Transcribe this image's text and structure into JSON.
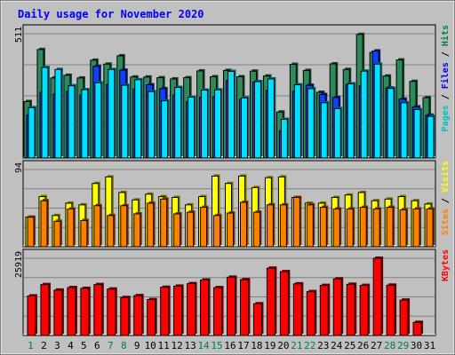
{
  "chart_data": [
    {
      "type": "bar",
      "title": "Daily usage for November 2020",
      "categories": [
        "1",
        "2",
        "3",
        "4",
        "5",
        "6",
        "7",
        "8",
        "9",
        "10",
        "11",
        "12",
        "13",
        "14",
        "15",
        "16",
        "17",
        "18",
        "19",
        "20",
        "21",
        "22",
        "23",
        "24",
        "25",
        "26",
        "27",
        "28",
        "29",
        "30",
        "31"
      ],
      "weekend_days": [
        "1",
        "7",
        "8",
        "14",
        "15",
        "21",
        "22",
        "28",
        "29"
      ],
      "ymax_label": "511",
      "ylim": [
        0,
        511
      ],
      "legend": [
        {
          "label": "Pages",
          "color": "#00c0c0"
        },
        {
          "label": "Files",
          "color": "#0000ff"
        },
        {
          "label": "Hits",
          "color": "#008040"
        }
      ],
      "series": [
        {
          "name": "Hits",
          "color": "#2e8a5a",
          "values": [
            232,
            446,
            329,
            340,
            329,
            402,
            386,
            420,
            333,
            333,
            330,
            325,
            330,
            358,
            334,
            360,
            334,
            357,
            337,
            189,
            385,
            360,
            270,
            387,
            364,
            508,
            434,
            337,
            403,
            315,
            248
          ]
        },
        {
          "name": "Files",
          "color": "#1040ff",
          "values": [
            176,
            270,
            263,
            274,
            259,
            377,
            302,
            361,
            284,
            301,
            285,
            259,
            230,
            250,
            252,
            318,
            241,
            312,
            278,
            112,
            274,
            299,
            261,
            249,
            302,
            297,
            440,
            288,
            242,
            210,
            176
          ]
        },
        {
          "name": "Pages",
          "color": "#00e0ff",
          "values": [
            207,
            372,
            364,
            297,
            281,
            309,
            364,
            299,
            322,
            273,
            235,
            290,
            250,
            279,
            280,
            356,
            247,
            314,
            325,
            159,
            301,
            285,
            227,
            203,
            305,
            357,
            386,
            286,
            227,
            199,
            171
          ]
        }
      ]
    },
    {
      "type": "bar",
      "categories": [
        "1",
        "2",
        "3",
        "4",
        "5",
        "6",
        "7",
        "8",
        "9",
        "10",
        "11",
        "12",
        "13",
        "14",
        "15",
        "16",
        "17",
        "18",
        "19",
        "20",
        "21",
        "22",
        "23",
        "24",
        "25",
        "26",
        "27",
        "28",
        "29",
        "30",
        "31"
      ],
      "ymax_label": "94",
      "ylim": [
        0,
        94
      ],
      "legend": [
        {
          "label": "Sites",
          "color": "#ff8000"
        },
        {
          "label": "Visits",
          "color": "#ffff00"
        }
      ],
      "series": [
        {
          "name": "Visits",
          "color": "#ffff00",
          "values": [
            36,
            61,
            38,
            53,
            51,
            77,
            85,
            66,
            57,
            64,
            61,
            60,
            51,
            61,
            86,
            77,
            86,
            72,
            84,
            85,
            60,
            53,
            53,
            60,
            63,
            66,
            56,
            58,
            61,
            56,
            52
          ]
        },
        {
          "name": "Sites",
          "color": "#ff8000",
          "values": [
            36,
            56,
            31,
            46,
            32,
            50,
            38,
            50,
            40,
            53,
            58,
            40,
            42,
            48,
            38,
            41,
            54,
            42,
            51,
            51,
            60,
            51,
            48,
            46,
            46,
            48,
            46,
            48,
            45,
            46,
            46
          ]
        }
      ]
    },
    {
      "type": "bar",
      "categories": [
        "1",
        "2",
        "3",
        "4",
        "5",
        "6",
        "7",
        "8",
        "9",
        "10",
        "11",
        "12",
        "13",
        "14",
        "15",
        "16",
        "17",
        "18",
        "19",
        "20",
        "21",
        "22",
        "23",
        "24",
        "25",
        "26",
        "27",
        "28",
        "29",
        "30",
        "31"
      ],
      "ymax_label": "25919",
      "ylim": [
        0,
        25919
      ],
      "legend": [
        {
          "label": "KBytes",
          "color": "#ff0000"
        }
      ],
      "series": [
        {
          "name": "KBytes",
          "color": "#ff0000",
          "values": [
            13280,
            17090,
            15240,
            16080,
            15810,
            17090,
            15580,
            12750,
            13380,
            12060,
            16180,
            16560,
            17400,
            18620,
            16070,
            19570,
            18740,
            10650,
            22590,
            21430,
            17330,
            14730,
            16800,
            19000,
            17180,
            16800,
            25919,
            16890,
            11880,
            4400,
            0
          ]
        }
      ]
    }
  ]
}
